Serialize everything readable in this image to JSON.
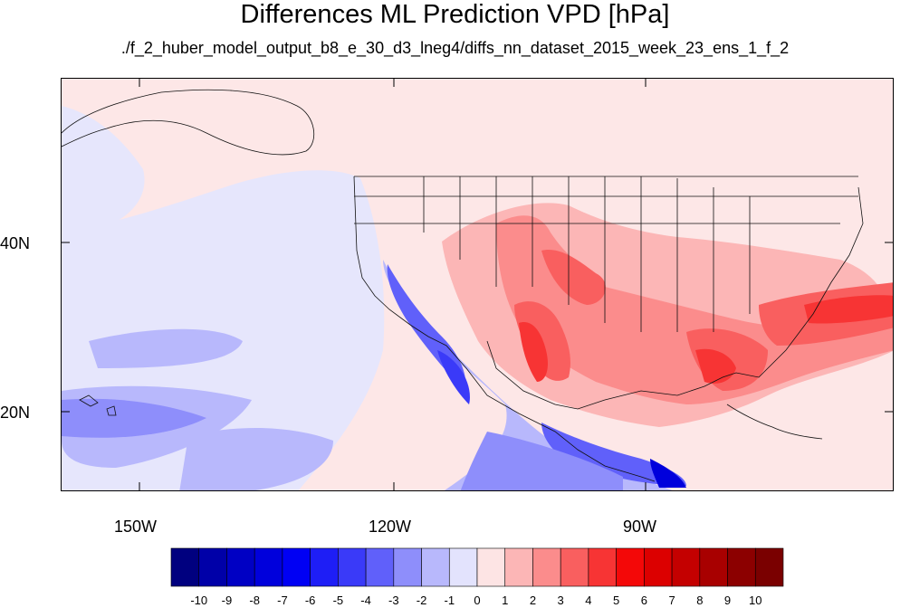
{
  "title": "Differences ML Prediction VPD [hPa]",
  "subtitle": "./f_2_huber_model_output_b8_e_30_d3_lneg4/diffs_nn_dataset_2015_week_23_ens_1_f_2",
  "map": {
    "lon_range": [
      -160,
      -62
    ],
    "lat_range": [
      10,
      58
    ],
    "x_ticks": [
      "150W",
      "120W",
      "90W"
    ],
    "y_ticks": [
      "40N",
      "20N"
    ]
  },
  "colorbar": {
    "labels": [
      "-10",
      "-9",
      "-8",
      "-7",
      "-6",
      "-5",
      "-4",
      "-3",
      "-2",
      "-1",
      "0",
      "1",
      "2",
      "3",
      "4",
      "5",
      "6",
      "7",
      "8",
      "9",
      "10"
    ],
    "colors": [
      "#00007f",
      "#0000a8",
      "#0000c4",
      "#0000dc",
      "#0000f4",
      "#1e1ef6",
      "#3a3af8",
      "#6060fa",
      "#8e8efb",
      "#b8b8fc",
      "#e3e3fd",
      "#fde4e4",
      "#fcb6b6",
      "#fb8c8c",
      "#f95f5f",
      "#f73434",
      "#f40808",
      "#dc0000",
      "#c40000",
      "#a80000",
      "#8c0000",
      "#7a0000"
    ]
  }
}
